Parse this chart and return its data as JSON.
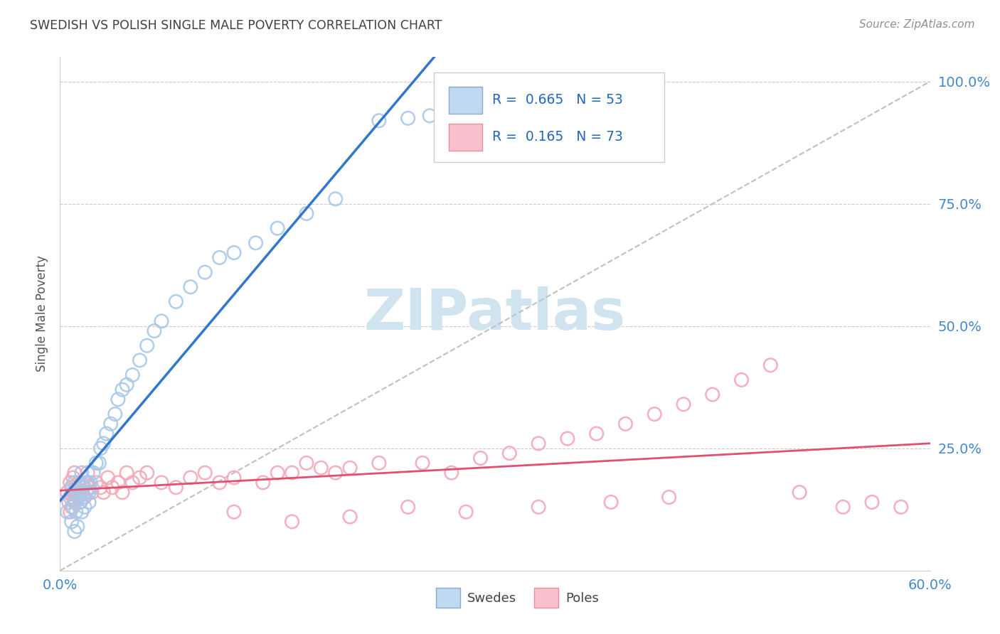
{
  "title": "SWEDISH VS POLISH SINGLE MALE POVERTY CORRELATION CHART",
  "source": "Source: ZipAtlas.com",
  "ylabel": "Single Male Poverty",
  "legend_blue_label": "Swedes",
  "legend_pink_label": "Poles",
  "legend_blue_r": "R = 0.665",
  "legend_blue_n": "N = 53",
  "legend_pink_r": "R = 0.165",
  "legend_pink_n": "N = 73",
  "blue_scatter_color": "#aac8e8",
  "pink_scatter_color": "#f4a8b8",
  "blue_line_color": "#3377cc",
  "pink_line_color": "#e05070",
  "diagonal_color": "#c0c0c0",
  "watermark_text": "ZIPatlas",
  "watermark_color": "#d0e4f0",
  "title_color": "#404040",
  "source_color": "#909090",
  "axis_tick_color": "#4488cc",
  "legend_text_color": "#2266bb",
  "xlim": [
    0.0,
    0.6
  ],
  "ylim": [
    0.0,
    1.05
  ],
  "yticks": [
    0.0,
    0.25,
    0.5,
    0.75,
    1.0
  ],
  "ytick_labels": [
    "",
    "25.0%",
    "50.0%",
    "75.0%",
    "100.0%"
  ],
  "xtick_labels": [
    "0.0%",
    "",
    "",
    "",
    "60.0%"
  ],
  "swedes_x": [
    0.005,
    0.007,
    0.008,
    0.008,
    0.009,
    0.009,
    0.01,
    0.01,
    0.01,
    0.011,
    0.012,
    0.013,
    0.014,
    0.015,
    0.015,
    0.016,
    0.016,
    0.017,
    0.018,
    0.019,
    0.02,
    0.02,
    0.021,
    0.022,
    0.023,
    0.025,
    0.027,
    0.028,
    0.03,
    0.032,
    0.035,
    0.038,
    0.04,
    0.043,
    0.046,
    0.05,
    0.055,
    0.06,
    0.065,
    0.07,
    0.08,
    0.09,
    0.1,
    0.11,
    0.12,
    0.135,
    0.15,
    0.17,
    0.19,
    0.22,
    0.24,
    0.255,
    0.27
  ],
  "swedes_y": [
    0.12,
    0.15,
    0.1,
    0.17,
    0.13,
    0.16,
    0.08,
    0.14,
    0.18,
    0.12,
    0.09,
    0.16,
    0.14,
    0.12,
    0.2,
    0.17,
    0.15,
    0.13,
    0.16,
    0.18,
    0.14,
    0.16,
    0.18,
    0.17,
    0.2,
    0.22,
    0.22,
    0.25,
    0.26,
    0.28,
    0.3,
    0.32,
    0.35,
    0.37,
    0.38,
    0.4,
    0.43,
    0.46,
    0.49,
    0.51,
    0.55,
    0.58,
    0.61,
    0.64,
    0.65,
    0.67,
    0.7,
    0.73,
    0.76,
    0.92,
    0.925,
    0.93,
    0.935
  ],
  "poles_x": [
    0.005,
    0.006,
    0.007,
    0.007,
    0.008,
    0.008,
    0.009,
    0.009,
    0.01,
    0.01,
    0.01,
    0.011,
    0.012,
    0.013,
    0.013,
    0.014,
    0.015,
    0.016,
    0.017,
    0.018,
    0.019,
    0.02,
    0.022,
    0.025,
    0.028,
    0.03,
    0.033,
    0.036,
    0.04,
    0.043,
    0.046,
    0.05,
    0.055,
    0.06,
    0.07,
    0.08,
    0.09,
    0.1,
    0.11,
    0.12,
    0.14,
    0.15,
    0.16,
    0.17,
    0.18,
    0.19,
    0.2,
    0.22,
    0.25,
    0.27,
    0.29,
    0.31,
    0.33,
    0.35,
    0.37,
    0.39,
    0.41,
    0.43,
    0.45,
    0.47,
    0.49,
    0.51,
    0.54,
    0.56,
    0.58,
    0.42,
    0.38,
    0.33,
    0.28,
    0.24,
    0.2,
    0.16,
    0.12
  ],
  "poles_y": [
    0.16,
    0.14,
    0.18,
    0.12,
    0.17,
    0.13,
    0.15,
    0.19,
    0.16,
    0.14,
    0.2,
    0.17,
    0.16,
    0.15,
    0.18,
    0.14,
    0.16,
    0.17,
    0.15,
    0.18,
    0.2,
    0.17,
    0.16,
    0.18,
    0.17,
    0.16,
    0.19,
    0.17,
    0.18,
    0.16,
    0.2,
    0.18,
    0.19,
    0.2,
    0.18,
    0.17,
    0.19,
    0.2,
    0.18,
    0.19,
    0.18,
    0.2,
    0.2,
    0.22,
    0.21,
    0.2,
    0.21,
    0.22,
    0.22,
    0.2,
    0.23,
    0.24,
    0.26,
    0.27,
    0.28,
    0.3,
    0.32,
    0.34,
    0.36,
    0.39,
    0.42,
    0.16,
    0.13,
    0.14,
    0.13,
    0.15,
    0.14,
    0.13,
    0.12,
    0.13,
    0.11,
    0.1,
    0.12
  ]
}
